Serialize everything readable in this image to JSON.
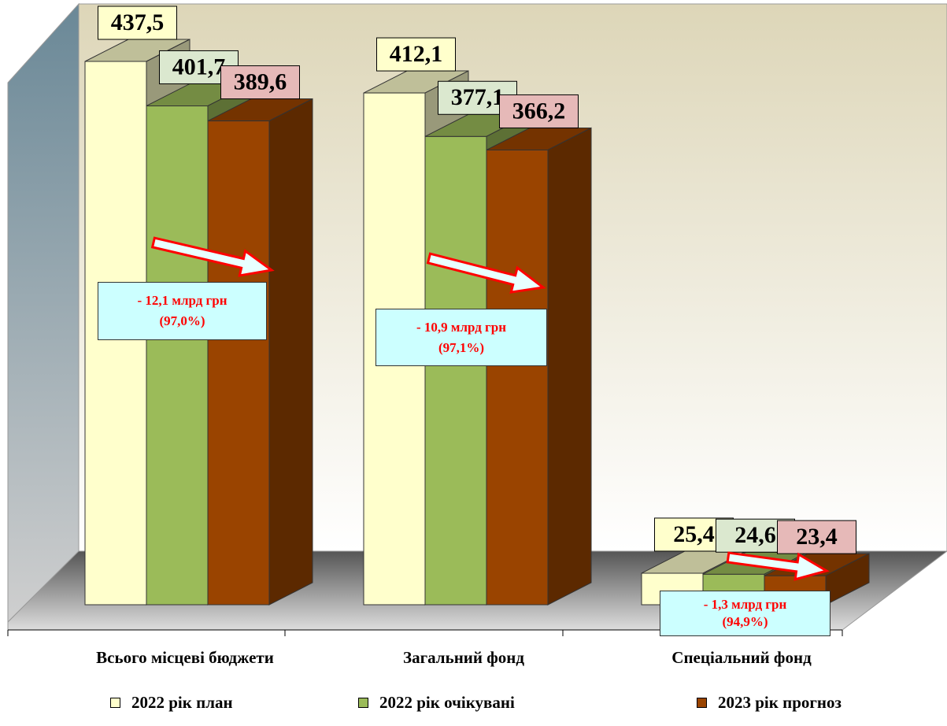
{
  "chart_data": {
    "type": "bar3d",
    "categories": [
      "Всього місцеві бюджети",
      "Загальний фонд",
      "Спеціальний фонд"
    ],
    "series": [
      {
        "name": "2022 рік план",
        "color": "#ffffcc",
        "label_color": "#ffffcc",
        "values": [
          437.5,
          412.1,
          25.4
        ],
        "value_labels": [
          "437,5",
          "412,1",
          "25,4"
        ]
      },
      {
        "name": "2022 рік очікувані",
        "color": "#9bbb59",
        "label_color": "#dbe8cf",
        "values": [
          401.7,
          377.1,
          24.6
        ],
        "value_labels": [
          "401,7",
          "377,1",
          "24,6"
        ]
      },
      {
        "name": "2023 рік прогноз",
        "color": "#9a4400",
        "label_color": "#e6b9b8",
        "values": [
          389.6,
          366.2,
          23.4
        ],
        "value_labels": [
          "389,6",
          "366,2",
          "23,4"
        ]
      }
    ],
    "annotations": [
      {
        "lines": [
          "- 12,1 млрд грн",
          "(97,0%)"
        ]
      },
      {
        "lines": [
          "- 10,9 млрд грн",
          "(97,1%)"
        ]
      },
      {
        "lines": [
          "- 1,3 млрд грн",
          "(94,9%)"
        ]
      }
    ]
  }
}
